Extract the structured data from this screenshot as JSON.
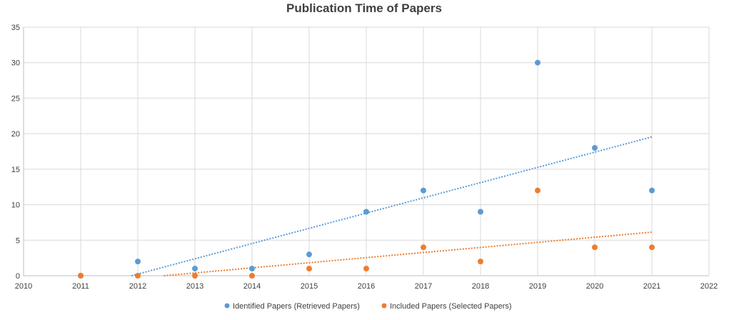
{
  "chart_data": {
    "type": "scatter",
    "title": "Publication Time of Papers",
    "xlabel": "",
    "ylabel": "",
    "xlim": [
      2010,
      2022
    ],
    "ylim": [
      0,
      35
    ],
    "x_ticks": [
      2010,
      2011,
      2012,
      2013,
      2014,
      2015,
      2016,
      2017,
      2018,
      2019,
      2020,
      2021,
      2022
    ],
    "y_ticks": [
      0,
      5,
      10,
      15,
      20,
      25,
      30,
      35
    ],
    "grid": true,
    "legend_position": "bottom",
    "series": [
      {
        "name": "Identified Papers (Retrieved Papers)",
        "color": "#5b9bd5",
        "trendline": "linear",
        "points": [
          {
            "x": 2011,
            "y": 0
          },
          {
            "x": 2012,
            "y": 2
          },
          {
            "x": 2013,
            "y": 1
          },
          {
            "x": 2014,
            "y": 1
          },
          {
            "x": 2015,
            "y": 3
          },
          {
            "x": 2016,
            "y": 9
          },
          {
            "x": 2017,
            "y": 12
          },
          {
            "x": 2018,
            "y": 9
          },
          {
            "x": 2019,
            "y": 30
          },
          {
            "x": 2020,
            "y": 18
          },
          {
            "x": 2021,
            "y": 12
          }
        ]
      },
      {
        "name": "Included Papers (Selected Papers)",
        "color": "#ed7d31",
        "trendline": "linear",
        "points": [
          {
            "x": 2011,
            "y": 0
          },
          {
            "x": 2012,
            "y": 0
          },
          {
            "x": 2013,
            "y": 0
          },
          {
            "x": 2014,
            "y": 0
          },
          {
            "x": 2015,
            "y": 1
          },
          {
            "x": 2016,
            "y": 1
          },
          {
            "x": 2017,
            "y": 4
          },
          {
            "x": 2018,
            "y": 2
          },
          {
            "x": 2019,
            "y": 12
          },
          {
            "x": 2020,
            "y": 4
          },
          {
            "x": 2021,
            "y": 4
          }
        ]
      }
    ]
  }
}
